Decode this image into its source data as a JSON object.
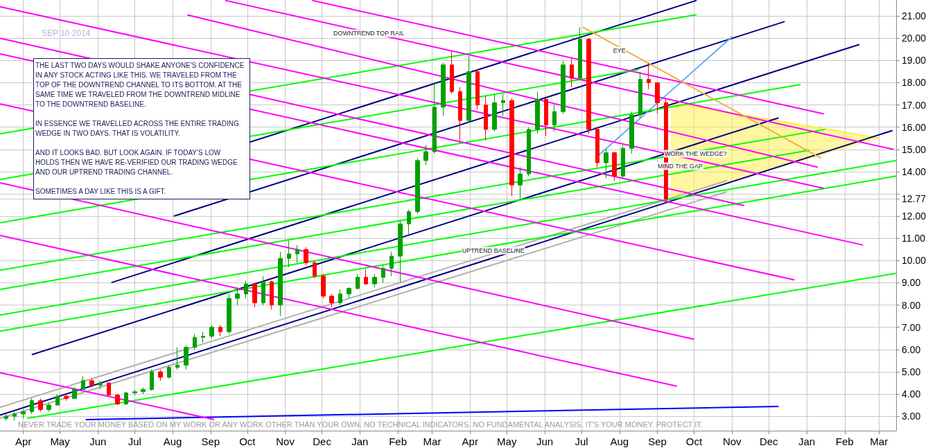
{
  "chart_data": {
    "type": "candlestick",
    "subtitle": "SEP 10 2014",
    "annotations": [
      "THE LAST TWO DAYS WOULD SHAKE ANYONE'S CONFIDENCE IN ANY STOCK ACTING LIKE THIS. WE TRAVELED FROM THE TOP OF THE DOWNTREND CHANNEL TO ITS BOTTOM. AT THE SAME TIME WE TRAVELED FROM THE DOWNTREND MIDLINE TO THE DOWNTREND BASELINE.\n\nIN ESSENCE WE TRAVELLED ACROSS THE ENTIRE TRADING WEDGE IN TWO DAYS. THAT IS VOLATILITY.\n\nAND IT LOOKS BAD. BUT LOOK AGAIN. IF TODAY'S LOW HOLDS THEN WE HAVE RE-VERIFIED OUR TRADING WEDGE AND OUR UPTREND TRADING CHANNEL.\n\nSOMETIMES A DAY LIKE THIS IS A GIFT.",
      "NEVER TRADE YOUR MONEY BASED ON MY WORK OR ANY WORK OTHER THAN YOUR OWN. NO TECHNICAL INDICATORS. NO FUNDAMENTAL ANALYSIS. IT'S YOUR MONEY. PROTECT IT.",
      "DOWNTREND TOP RAIL",
      "WORK THE WEDGE?",
      "MIND THE GAP",
      {
        "text": "UPTREND BASELINE",
        "x": "2014-04-20",
        "y": 10.45
      },
      {
        "text": "EYE",
        "x": "2014-08-01",
        "y": 19.44
      }
    ],
    "xlim": [
      "2013-03-13",
      "2015-03-15"
    ],
    "ylim": [
      2.35,
      21.72
    ],
    "xticks": [
      {
        "value": "2013-04-01",
        "label": "Apr"
      },
      {
        "value": "2013-05-01",
        "label": "May"
      },
      {
        "value": "2013-06-01",
        "label": "Jun"
      },
      {
        "value": "2013-07-01",
        "label": "Jul"
      },
      {
        "value": "2013-08-01",
        "label": "Aug"
      },
      {
        "value": "2013-09-01",
        "label": "Sep"
      },
      {
        "value": "2013-10-01",
        "label": "Oct"
      },
      {
        "value": "2013-11-01",
        "label": "Nov"
      },
      {
        "value": "2013-12-01",
        "label": "Dec"
      },
      {
        "value": "2014-01-01",
        "label": "Jan"
      },
      {
        "value": "2014-02-01",
        "label": "Feb"
      },
      {
        "value": "2014-03-01",
        "label": "Mar"
      },
      {
        "value": "2014-04-01",
        "label": "Apr"
      },
      {
        "value": "2014-05-01",
        "label": "May"
      },
      {
        "value": "2014-06-01",
        "label": "Jun"
      },
      {
        "value": "2014-07-01",
        "label": "Jul"
      },
      {
        "value": "2014-08-01",
        "label": "Aug"
      },
      {
        "value": "2014-09-01",
        "label": "Sep"
      },
      {
        "value": "2014-10-01",
        "label": "Oct"
      },
      {
        "value": "2014-11-01",
        "label": "Nov"
      },
      {
        "value": "2014-12-01",
        "label": "Dec"
      },
      {
        "value": "2015-01-01",
        "label": "Jan"
      },
      {
        "value": "2015-02-01",
        "label": "Feb"
      },
      {
        "value": "2015-03-01",
        "label": "Mar"
      }
    ],
    "yticks": [
      {
        "value": 3,
        "label": "3.00"
      },
      {
        "value": 4,
        "label": "4.00"
      },
      {
        "value": 5,
        "label": "5.00"
      },
      {
        "value": 6,
        "label": "6.00"
      },
      {
        "value": 7,
        "label": "7.00"
      },
      {
        "value": 8,
        "label": "8.00"
      },
      {
        "value": 9,
        "label": "9.00"
      },
      {
        "value": 10,
        "label": "10.00"
      },
      {
        "value": 11,
        "label": "11.00"
      },
      {
        "value": 12,
        "label": "12.00"
      },
      {
        "value": 12.77,
        "label": "12.77"
      },
      {
        "value": 13,
        "label": null
      },
      {
        "value": 14,
        "label": "14.00"
      },
      {
        "value": 15,
        "label": "15.00"
      },
      {
        "value": 16,
        "label": "16.00"
      },
      {
        "value": 17,
        "label": "17.00"
      },
      {
        "value": 18,
        "label": "18.00"
      },
      {
        "value": 19,
        "label": "19.00"
      },
      {
        "value": 20,
        "label": "20.00"
      },
      {
        "value": 21,
        "label": "21.00"
      }
    ],
    "grid": true,
    "series": [
      {
        "type": "line",
        "color": "#ffee44",
        "x": [
          "2014-09-12",
          "2015-03-02"
        ],
        "values": [
          17.1,
          15.5
        ],
        "lower": [
          12.75,
          15.5
        ],
        "upper": [
          17.1,
          15.5
        ]
      },
      {
        "type": "line",
        "color": "#000080",
        "x": [
          "2013-03-13",
          "2015-03-12"
        ],
        "values": [
          3.05,
          15.85
        ]
      },
      {
        "type": "line",
        "color": "#000080",
        "x": [
          "2013-04-08",
          "2014-12-09"
        ],
        "values": [
          5.77,
          16.42
        ]
      },
      {
        "type": "line",
        "color": "#000080",
        "x": [
          "2013-06-12",
          "2015-02-13"
        ],
        "values": [
          9.01,
          19.72
        ]
      },
      {
        "type": "line",
        "color": "#000080",
        "x": [
          "2013-08-02",
          "2014-12-14"
        ],
        "values": [
          12.0,
          20.75
        ]
      },
      {
        "type": "line",
        "color": "#000080",
        "x": [
          "2013-10-03",
          "2014-10-03"
        ],
        "values": [
          15.33,
          21.7
        ]
      },
      {
        "type": "line",
        "color": "#0000ff",
        "x": [
          "2013-05-22",
          "2014-12-09"
        ],
        "values": [
          2.85,
          3.44
        ]
      },
      {
        "type": "line",
        "color": "#66aaee",
        "x": [
          "2014-07-15",
          "2014-11-01"
        ],
        "values": [
          14.74,
          20.07
        ]
      },
      {
        "type": "line",
        "color": "#b0b0b0",
        "x": [
          "2013-03-13",
          "2014-10-28"
        ],
        "values": [
          3.4,
          13.6
        ]
      },
      {
        "type": "line",
        "color": "#b0b0b0",
        "x": [
          "2013-03-13",
          "2014-10-28"
        ],
        "values": [
          2.9,
          13.1
        ]
      },
      {
        "type": "line",
        "color": "#00ff00",
        "x": [
          "2013-03-13",
          "2014-10-03"
        ],
        "values": [
          15.7,
          21.06
        ]
      },
      {
        "type": "line",
        "color": "#00ff00",
        "x": [
          "2013-03-13",
          "2014-12-27"
        ],
        "values": [
          11.7,
          17.92
        ]
      },
      {
        "type": "line",
        "color": "#00ff00",
        "x": [
          "2013-03-13",
          "2015-01-03"
        ],
        "values": [
          8.7,
          14.96
        ]
      },
      {
        "type": "line",
        "color": "#00ff00",
        "x": [
          "2013-04-04",
          "2015-03-15"
        ],
        "values": [
          2.9,
          9.43
        ]
      },
      {
        "type": "line",
        "color": "#00ff00",
        "x": [
          "2013-03-13",
          "2015-03-15"
        ],
        "values": [
          7.55,
          14.5
        ]
      },
      {
        "type": "line",
        "color": "#00ff00",
        "x": [
          "2013-03-13",
          "2015-03-15"
        ],
        "values": [
          6.83,
          13.8
        ]
      },
      {
        "type": "line",
        "color": "#00ff00",
        "x": [
          "2013-03-13",
          "2015-01-16"
        ],
        "values": [
          9.57,
          15.9
        ]
      },
      {
        "type": "line",
        "color": "#00ff00",
        "x": [
          "2013-03-13",
          "2014-08-17"
        ],
        "values": [
          13.65,
          18.6
        ]
      },
      {
        "type": "line",
        "color": "#ff00ff",
        "x": [
          "2013-09-13",
          "2015-03-13"
        ],
        "values": [
          21.7,
          15.0
        ]
      },
      {
        "type": "line",
        "color": "#ff00ff",
        "x": [
          "2013-03-13",
          "2015-02-16"
        ],
        "values": [
          19.3,
          10.7
        ]
      },
      {
        "type": "line",
        "color": "#ff00ff",
        "x": [
          "2013-03-13",
          "2013-09-04"
        ],
        "values": [
          4.96,
          2.85
        ]
      },
      {
        "type": "line",
        "color": "#ff00ff",
        "x": [
          "2013-03-13",
          "2014-09-17"
        ],
        "values": [
          11.13,
          4.35
        ]
      },
      {
        "type": "line",
        "color": "#ff00ff",
        "x": [
          "2013-03-13",
          "2014-10-01"
        ],
        "values": [
          13.5,
          6.46
        ]
      },
      {
        "type": "line",
        "color": "#ff00ff",
        "x": [
          "2013-03-13",
          "2014-12-22"
        ],
        "values": [
          17.05,
          9.13
        ]
      },
      {
        "type": "line",
        "color": "#ff00ff",
        "x": [
          "2013-03-13",
          "2014-11-11"
        ],
        "values": [
          20.0,
          12.47
        ]
      },
      {
        "type": "line",
        "color": "#ff00ff",
        "x": [
          "2013-08-13",
          "2015-01-10"
        ],
        "values": [
          21.05,
          14.2
        ]
      },
      {
        "type": "line",
        "color": "#ff00ff",
        "x": [
          "2013-03-13",
          "2015-01-15"
        ],
        "values": [
          21.42,
          13.25
        ]
      },
      {
        "type": "line",
        "color": "#ff00ff",
        "x": [
          "2013-11-23",
          "2015-01-15"
        ],
        "values": [
          21.7,
          16.6
        ]
      },
      {
        "type": "line",
        "color": "#f0b040",
        "x": [
          "2014-07-02",
          "2015-01-13"
        ],
        "values": [
          20.5,
          14.6
        ]
      },
      {
        "x": [
          "2013-03-18",
          "2013-03-25",
          "2013-04-01",
          "2013-04-08",
          "2013-04-15",
          "2013-04-22",
          "2013-04-29",
          "2013-05-06",
          "2013-05-13",
          "2013-05-20",
          "2013-05-27",
          "2013-06-03",
          "2013-06-10",
          "2013-06-17",
          "2013-06-24",
          "2013-07-01",
          "2013-07-08",
          "2013-07-15",
          "2013-07-22",
          "2013-07-29",
          "2013-08-05",
          "2013-08-12",
          "2013-08-19",
          "2013-08-26",
          "2013-09-02",
          "2013-09-09",
          "2013-09-16",
          "2013-09-23",
          "2013-09-30",
          "2013-10-07",
          "2013-10-14",
          "2013-10-21",
          "2013-10-28",
          "2013-11-04",
          "2013-11-11",
          "2013-11-18",
          "2013-11-25",
          "2013-12-02",
          "2013-12-09",
          "2013-12-16",
          "2013-12-23",
          "2013-12-30",
          "2014-01-06",
          "2014-01-13",
          "2014-01-20",
          "2014-01-27",
          "2014-02-03",
          "2014-02-10",
          "2014-02-17",
          "2014-02-24",
          "2014-03-03",
          "2014-03-10",
          "2014-03-17",
          "2014-03-24",
          "2014-03-31",
          "2014-04-07",
          "2014-04-14",
          "2014-04-21",
          "2014-04-28",
          "2014-05-05",
          "2014-05-12",
          "2014-05-19",
          "2014-05-26",
          "2014-06-02",
          "2014-06-09",
          "2014-06-16",
          "2014-06-23",
          "2014-06-30",
          "2014-07-07",
          "2014-07-14",
          "2014-07-21",
          "2014-07-28",
          "2014-08-04",
          "2014-08-11",
          "2014-08-18",
          "2014-08-25",
          "2014-09-01",
          "2014-09-08"
        ],
        "ohlc": [
          [
            2.9,
            3.1,
            2.8,
            3.0
          ],
          [
            3.0,
            3.2,
            2.8,
            3.1
          ],
          [
            3.1,
            3.3,
            2.9,
            3.2
          ],
          [
            3.2,
            3.8,
            3.1,
            3.7
          ],
          [
            3.7,
            3.8,
            3.2,
            3.3
          ],
          [
            3.3,
            3.6,
            3.2,
            3.5
          ],
          [
            3.5,
            4.0,
            3.5,
            3.9
          ],
          [
            3.9,
            4.0,
            3.7,
            3.8
          ],
          [
            3.8,
            4.3,
            3.8,
            4.2
          ],
          [
            4.2,
            4.8,
            4.2,
            4.6
          ],
          [
            4.6,
            4.7,
            4.3,
            4.4
          ],
          [
            4.4,
            4.6,
            4.2,
            4.5
          ],
          [
            4.5,
            4.5,
            3.9,
            3.95
          ],
          [
            3.95,
            4.0,
            3.5,
            3.55
          ],
          [
            3.55,
            4.1,
            3.5,
            4.05
          ],
          [
            4.05,
            4.2,
            3.95,
            4.1
          ],
          [
            4.1,
            4.3,
            4.0,
            4.2
          ],
          [
            4.2,
            5.1,
            4.15,
            5.0
          ],
          [
            5.0,
            5.1,
            4.6,
            4.75
          ],
          [
            4.75,
            5.3,
            4.7,
            5.2
          ],
          [
            5.2,
            6.1,
            5.1,
            5.3
          ],
          [
            5.3,
            6.2,
            5.1,
            6.1
          ],
          [
            6.1,
            6.7,
            6.0,
            6.55
          ],
          [
            6.55,
            6.8,
            6.3,
            6.6
          ],
          [
            6.6,
            7.1,
            6.5,
            7.0
          ],
          [
            7.0,
            7.1,
            6.6,
            6.8
          ],
          [
            6.8,
            8.5,
            6.7,
            8.3
          ],
          [
            8.3,
            8.8,
            8.0,
            8.5
          ],
          [
            8.5,
            9.1,
            8.3,
            8.95
          ],
          [
            8.95,
            9.0,
            7.9,
            8.1
          ],
          [
            8.1,
            9.3,
            8.0,
            9.05
          ],
          [
            9.05,
            9.1,
            7.8,
            8.0
          ],
          [
            8.0,
            10.4,
            7.5,
            10.1
          ],
          [
            10.1,
            10.9,
            9.7,
            10.3
          ],
          [
            10.3,
            10.7,
            9.9,
            10.5
          ],
          [
            10.5,
            10.6,
            9.8,
            9.9
          ],
          [
            9.9,
            10.0,
            9.2,
            9.3
          ],
          [
            9.3,
            9.4,
            8.3,
            8.4
          ],
          [
            8.4,
            8.5,
            7.9,
            8.1
          ],
          [
            8.1,
            8.7,
            8.0,
            8.5
          ],
          [
            8.5,
            8.8,
            8.3,
            8.75
          ],
          [
            8.75,
            9.4,
            8.7,
            9.25
          ],
          [
            9.25,
            9.6,
            8.9,
            8.95
          ],
          [
            8.95,
            9.4,
            8.8,
            9.25
          ],
          [
            9.25,
            9.8,
            9.0,
            9.65
          ],
          [
            9.65,
            10.4,
            9.3,
            10.2
          ],
          [
            10.2,
            11.8,
            9.0,
            11.65
          ],
          [
            11.65,
            12.3,
            11.2,
            12.2
          ],
          [
            12.2,
            14.6,
            12.1,
            14.5
          ],
          [
            14.5,
            15.2,
            14.3,
            14.9
          ],
          [
            14.9,
            18.0,
            14.8,
            16.9
          ],
          [
            16.9,
            18.9,
            16.5,
            18.8
          ],
          [
            18.8,
            19.4,
            17.5,
            17.6
          ],
          [
            17.6,
            17.8,
            15.4,
            16.3
          ],
          [
            16.3,
            19.2,
            16.2,
            18.5
          ],
          [
            18.5,
            18.6,
            16.8,
            17.0
          ],
          [
            17.0,
            17.4,
            15.4,
            15.9
          ],
          [
            15.9,
            17.5,
            15.8,
            17.1
          ],
          [
            17.1,
            17.5,
            16.5,
            17.2
          ],
          [
            17.2,
            17.3,
            12.9,
            13.4
          ],
          [
            13.4,
            14.2,
            12.8,
            13.9
          ],
          [
            13.9,
            16.0,
            13.8,
            15.9
          ],
          [
            15.9,
            17.6,
            15.7,
            17.25
          ],
          [
            17.25,
            17.3,
            15.6,
            16.1
          ],
          [
            16.1,
            17.0,
            15.8,
            16.7
          ],
          [
            16.7,
            19.0,
            16.6,
            18.8
          ],
          [
            18.8,
            19.1,
            17.8,
            18.2
          ],
          [
            18.2,
            20.5,
            18.1,
            19.95
          ],
          [
            19.95,
            20.0,
            15.7,
            15.9
          ],
          [
            15.9,
            16.0,
            14.2,
            14.4
          ],
          [
            14.4,
            15.0,
            13.7,
            14.85
          ],
          [
            14.85,
            14.9,
            13.6,
            13.8
          ],
          [
            13.8,
            15.2,
            13.7,
            15.05
          ],
          [
            15.05,
            16.7,
            14.8,
            16.55
          ],
          [
            16.55,
            18.5,
            16.4,
            18.15
          ],
          [
            18.15,
            18.9,
            17.7,
            18.0
          ],
          [
            18.0,
            18.0,
            16.6,
            17.1
          ],
          [
            17.1,
            17.3,
            12.7,
            12.77
          ]
        ],
        "colors": [
          "#00a000",
          "#00a000",
          "#00a000",
          "#00a000",
          "#ff0000",
          "#00a000",
          "#00a000",
          "#ff0000",
          "#00a000",
          "#00a000",
          "#ff0000",
          "#00a000",
          "#ff0000",
          "#ff0000",
          "#00a000",
          "#00a000",
          "#00a000",
          "#00a000",
          "#ff0000",
          "#00a000",
          "#00a000",
          "#00a000",
          "#00a000",
          "#00a000",
          "#00a000",
          "#ff0000",
          "#00a000",
          "#00a000",
          "#00a000",
          "#ff0000",
          "#00a000",
          "#ff0000",
          "#00a000",
          "#00a000",
          "#00a000",
          "#ff0000",
          "#ff0000",
          "#ff0000",
          "#ff0000",
          "#00a000",
          "#00a000",
          "#00a000",
          "#ff0000",
          "#00a000",
          "#00a000",
          "#00a000",
          "#00a000",
          "#00a000",
          "#00a000",
          "#00a000",
          "#00a000",
          "#00a000",
          "#ff0000",
          "#ff0000",
          "#00a000",
          "#ff0000",
          "#ff0000",
          "#00a000",
          "#00a000",
          "#ff0000",
          "#00a000",
          "#00a000",
          "#00a000",
          "#ff0000",
          "#00a000",
          "#00a000",
          "#ff0000",
          "#00a000",
          "#ff0000",
          "#ff0000",
          "#00a000",
          "#ff0000",
          "#00a000",
          "#00a000",
          "#00a000",
          "#ff0000",
          "#ff0000",
          "#ff0000"
        ]
      }
    ]
  }
}
